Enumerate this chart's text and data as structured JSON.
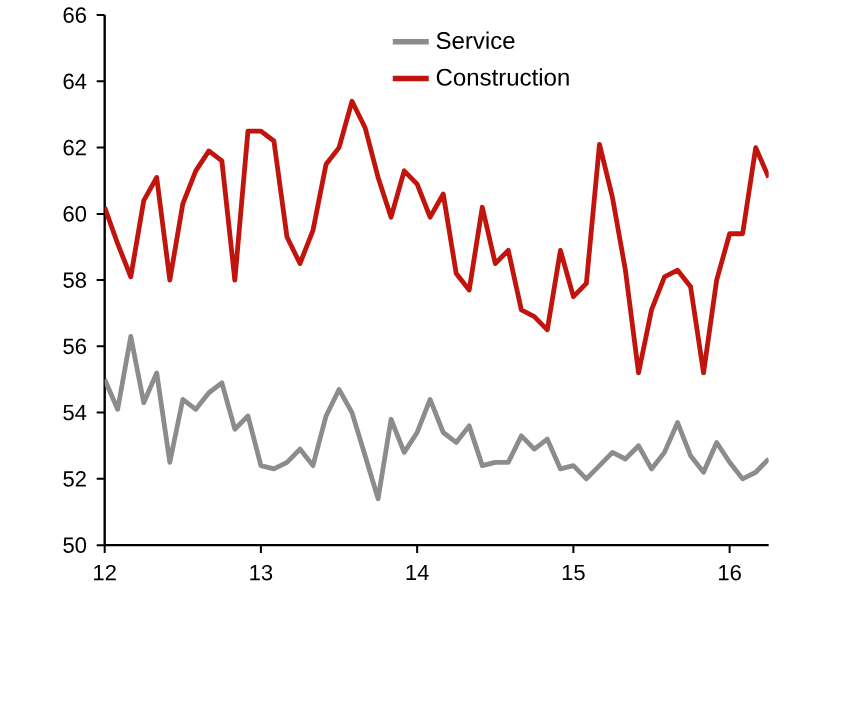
{
  "chart_data": {
    "type": "line",
    "x": [
      12.0,
      12.083,
      12.167,
      12.25,
      12.333,
      12.417,
      12.5,
      12.583,
      12.667,
      12.75,
      12.833,
      12.917,
      13.0,
      13.083,
      13.167,
      13.25,
      13.333,
      13.417,
      13.5,
      13.583,
      13.667,
      13.75,
      13.833,
      13.917,
      14.0,
      14.083,
      14.167,
      14.25,
      14.333,
      14.417,
      14.5,
      14.583,
      14.667,
      14.75,
      14.833,
      14.917,
      15.0,
      15.083,
      15.167,
      15.25,
      15.333,
      15.417,
      15.5,
      15.583,
      15.667,
      15.75,
      15.833,
      15.917,
      16.0,
      16.083,
      16.167,
      16.25
    ],
    "series": [
      {
        "name": "Service",
        "color": "#8c8c8c",
        "values": [
          55.0,
          54.1,
          56.3,
          54.3,
          55.2,
          52.5,
          54.4,
          54.1,
          54.6,
          54.9,
          53.5,
          53.9,
          52.4,
          52.3,
          52.5,
          52.9,
          52.4,
          53.9,
          54.7,
          54.0,
          52.7,
          51.4,
          53.8,
          52.8,
          53.4,
          54.4,
          53.4,
          53.1,
          53.6,
          52.4,
          52.5,
          52.5,
          53.3,
          52.9,
          53.2,
          52.3,
          52.4,
          52.0,
          52.4,
          52.8,
          52.6,
          53.0,
          52.3,
          52.8,
          53.7,
          52.7,
          52.2,
          53.1,
          52.5,
          52.0,
          52.2,
          52.6
        ]
      },
      {
        "name": "Construction",
        "color": "#c0140c",
        "values": [
          60.2,
          59.1,
          58.1,
          60.4,
          61.1,
          58.0,
          60.3,
          61.3,
          61.9,
          61.6,
          58.0,
          62.5,
          62.5,
          62.2,
          59.3,
          58.5,
          59.5,
          61.5,
          62.0,
          63.4,
          62.6,
          61.1,
          59.9,
          61.3,
          60.9,
          59.9,
          60.6,
          58.2,
          57.7,
          60.2,
          58.5,
          58.9,
          57.1,
          56.9,
          56.5,
          58.9,
          57.5,
          57.9,
          62.1,
          60.5,
          58.3,
          55.2,
          57.1,
          58.1,
          58.3,
          57.8,
          55.2,
          58.0,
          59.4,
          59.4,
          62.0,
          61.1
        ]
      }
    ],
    "xlim": [
      12,
      16.25
    ],
    "xticks": [
      12,
      13,
      14,
      15,
      16
    ],
    "ylim": [
      50,
      66
    ],
    "yticks": [
      50,
      52,
      54,
      56,
      58,
      60,
      62,
      64,
      66
    ],
    "legend": "top",
    "line_style": "solid",
    "marker": "none",
    "grid": false
  }
}
